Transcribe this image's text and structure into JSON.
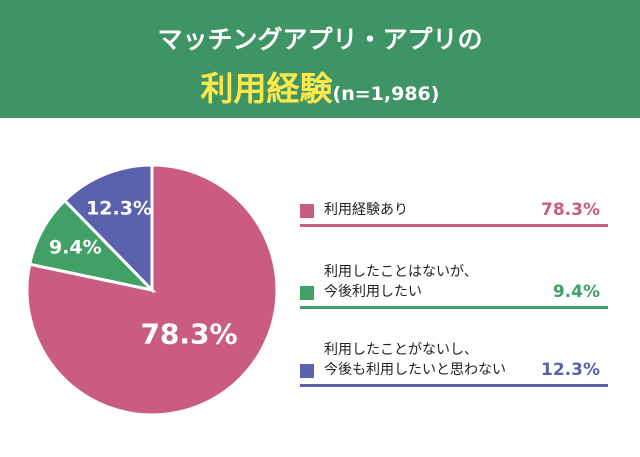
{
  "chart_data": {
    "type": "pie",
    "title": "マッチングアプリ・アプリの",
    "title_emphasis": "利用経験",
    "sample_size": "(n=1,986)",
    "series": [
      {
        "name": "利用経験あり",
        "color": "#c95c80",
        "values": [
          78.3
        ],
        "value_labels": [
          "78.3%"
        ]
      },
      {
        "name": "利用したことはないが、\n今後利用したい",
        "color": "#41a065",
        "values": [
          9.4
        ],
        "value_labels": [
          "9.4%"
        ]
      },
      {
        "name": "利用したことがないし、\n今後も利用したいと思わない",
        "color": "#5a62ad",
        "values": [
          12.3
        ],
        "value_labels": [
          "12.3%"
        ]
      }
    ]
  }
}
